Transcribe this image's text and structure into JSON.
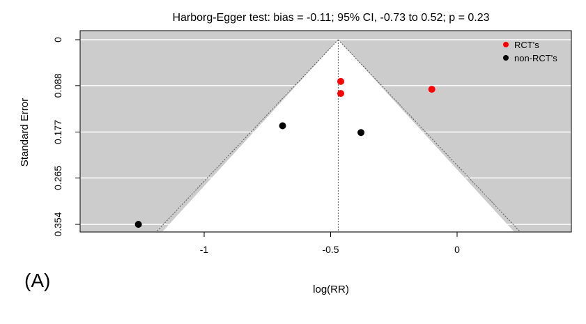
{
  "chart_data": {
    "type": "scatter",
    "subtype": "funnel-plot",
    "title": "Harborg-Egger test: bias = -0.11; 95% CI, -0.73 to 0.52; p = 0.23",
    "xlabel": "log(RR)",
    "ylabel": "Standard Error",
    "panel_label": "(A)",
    "xlim": [
      -1.5,
      0.45
    ],
    "ylim": [
      0.354,
      0
    ],
    "y_inverted": true,
    "x_ticks": [
      {
        "value": -1,
        "label": "-1"
      },
      {
        "value": -0.5,
        "label": "-0.5"
      },
      {
        "value": 0,
        "label": "0"
      }
    ],
    "y_ticks": [
      {
        "value": 0,
        "label": "0"
      },
      {
        "value": 0.088,
        "label": "0.088"
      },
      {
        "value": 0.177,
        "label": "0.177"
      },
      {
        "value": 0.265,
        "label": "0.265"
      },
      {
        "value": 0.354,
        "label": "0.354"
      }
    ],
    "grid": true,
    "funnel_center": -0.47,
    "funnel_z": 1.96,
    "legend_position": "top-right",
    "series": [
      {
        "name": "RCT's",
        "color": "#ff0000",
        "points": [
          {
            "x": -0.46,
            "y": 0.08
          },
          {
            "x": -0.46,
            "y": 0.103
          },
          {
            "x": -0.1,
            "y": 0.095
          }
        ]
      },
      {
        "name": "non-RCT's",
        "color": "#000000",
        "points": [
          {
            "x": -0.69,
            "y": 0.165
          },
          {
            "x": -0.38,
            "y": 0.178
          },
          {
            "x": -1.26,
            "y": 0.354
          }
        ]
      }
    ],
    "colors": {
      "background": "#cccccc",
      "funnel": "#ffffff",
      "grid": "#ffffff"
    }
  }
}
